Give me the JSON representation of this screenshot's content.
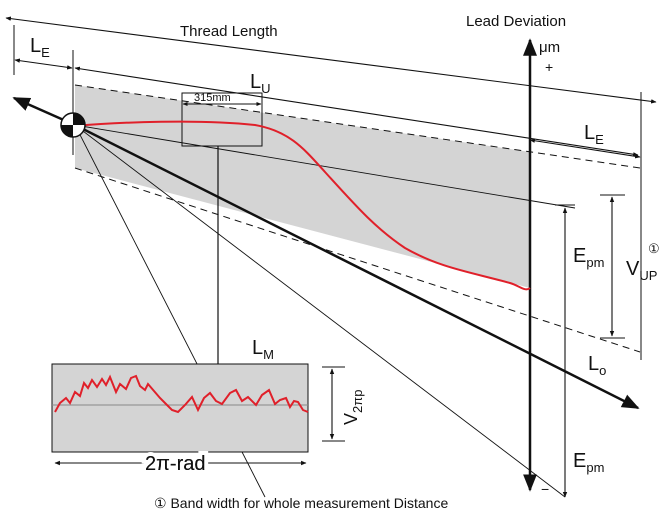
{
  "title_thread_length": "Thread Length",
  "title_lead_deviation": "Lead Deviation",
  "axis_unit": "μm",
  "axis_plus": "+",
  "axis_minus": "−",
  "labels": {
    "le": {
      "main": "L",
      "sub": "E"
    },
    "lu": {
      "main": "L",
      "sub": "U"
    },
    "le_right": {
      "main": "L",
      "sub": "E"
    },
    "window": "315mm",
    "epm_upper": {
      "main": "E",
      "sub": "pm"
    },
    "epm_lower": {
      "main": "E",
      "sub": "pm"
    },
    "vup": {
      "main": "V",
      "sub": "UP",
      "mark": "①"
    },
    "lo": {
      "main": "L",
      "sub": "o"
    },
    "lm": {
      "main": "L",
      "sub": "M"
    },
    "v2pp": {
      "main": "V",
      "sub": "2πp"
    },
    "two_pi_rad": "2π-rad"
  },
  "footnote": "① Band width for whole measurement Distance",
  "colors": {
    "band_fill": "#d4d4d4",
    "curve": "#e0202a",
    "line": "#111111"
  }
}
